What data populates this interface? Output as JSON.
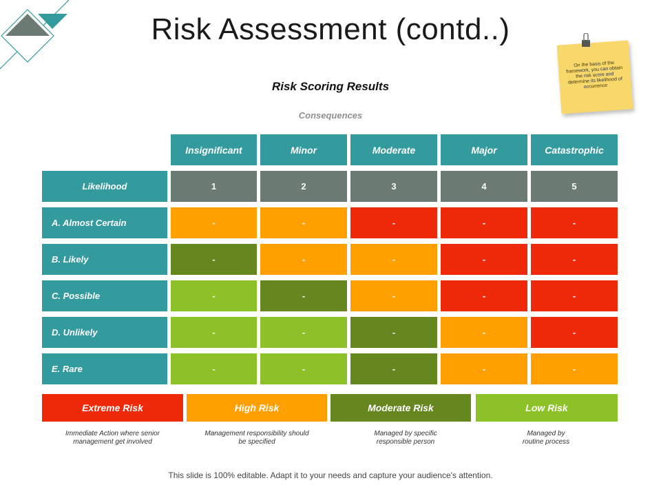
{
  "title": "Risk Assessment (contd..)",
  "subtitle": "Risk Scoring Results",
  "consequences_label": "Consequences",
  "note": "On the basis of the framework, you can obtain the risk score and determine its likelihood of occurrence",
  "columns": [
    "Insignificant",
    "Minor",
    "Moderate",
    "Major",
    "Catastrophic"
  ],
  "likelihood_label": "Likelihood",
  "scores": [
    "1",
    "2",
    "3",
    "4",
    "5"
  ],
  "rows": [
    {
      "label": "A. Almost Certain",
      "cells": [
        "-",
        "-",
        "-",
        "-",
        "-"
      ],
      "levels": [
        "high",
        "high",
        "extreme",
        "extreme",
        "extreme"
      ]
    },
    {
      "label": "B. Likely",
      "cells": [
        "-",
        "-",
        "-",
        "-",
        "-"
      ],
      "levels": [
        "moderate",
        "high",
        "high",
        "extreme",
        "extreme"
      ]
    },
    {
      "label": "C. Possible",
      "cells": [
        "-",
        "-",
        "-",
        "-",
        "-"
      ],
      "levels": [
        "low",
        "moderate",
        "high",
        "extreme",
        "extreme"
      ]
    },
    {
      "label": "D. Unlikely",
      "cells": [
        "-",
        "-",
        "-",
        "-",
        "-"
      ],
      "levels": [
        "low",
        "low",
        "moderate",
        "high",
        "extreme"
      ]
    },
    {
      "label": "E. Rare",
      "cells": [
        "-",
        "-",
        "-",
        "-",
        "-"
      ],
      "levels": [
        "low",
        "low",
        "moderate",
        "high",
        "high"
      ]
    }
  ],
  "colors": {
    "teal": "#339a9e",
    "gray": "#6b7a72",
    "extreme": "#ee2a0b",
    "high": "#ffa000",
    "moderate": "#66861f",
    "low": "#8cc128"
  },
  "legend": [
    {
      "label": "Extreme Risk",
      "level": "extreme",
      "desc": [
        "Immediate Action where senior",
        "management get involved"
      ]
    },
    {
      "label": "High Risk",
      "level": "high",
      "desc": [
        "Management responsibility should",
        "be specified"
      ]
    },
    {
      "label": "Moderate Risk",
      "level": "moderate",
      "desc": [
        "Managed by specific",
        "responsible person"
      ]
    },
    {
      "label": "Low Risk",
      "level": "low",
      "desc": [
        "Managed by",
        "routine process"
      ]
    }
  ],
  "footer": "This slide is 100% editable. Adapt it to your needs and capture your audience's attention."
}
